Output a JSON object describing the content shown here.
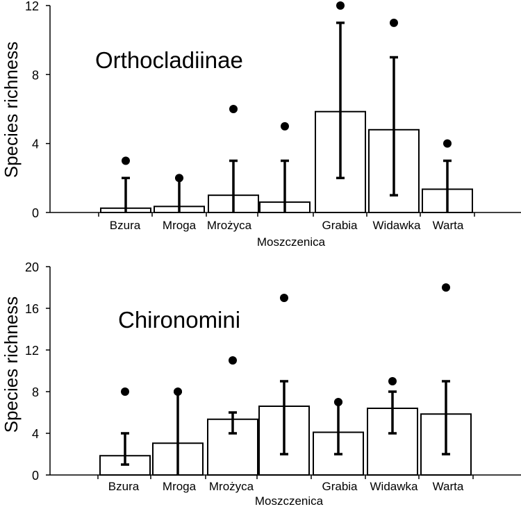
{
  "chart_data": [
    {
      "type": "bar",
      "title": "Orthocladiinae",
      "xlabel": "",
      "ylabel": "Species richness",
      "ylim": [
        0,
        12
      ],
      "yticks": [
        "0",
        "4",
        "8",
        "12"
      ],
      "yticks_values": [
        0,
        4,
        8,
        12
      ],
      "categories": [
        "Bzura",
        "Mroga",
        "Mrożyca",
        "Moszczenica",
        "Grabia",
        "Widawka",
        "Warta"
      ],
      "series": [
        {
          "name": "mean",
          "values": [
            0.25,
            0.35,
            1.0,
            0.6,
            5.85,
            4.8,
            1.35
          ]
        },
        {
          "name": "error_low",
          "values": [
            0,
            0,
            0,
            0,
            2,
            1,
            0
          ]
        },
        {
          "name": "error_high",
          "values": [
            2,
            2,
            3,
            3,
            11,
            9,
            3
          ]
        },
        {
          "name": "max",
          "values": [
            3,
            2,
            6,
            5,
            12,
            11,
            4
          ]
        }
      ]
    },
    {
      "type": "bar",
      "title": "Chironomini",
      "xlabel": "",
      "ylabel": "Species richness",
      "ylim": [
        0,
        20
      ],
      "yticks": [
        "0",
        "4",
        "8",
        "12",
        "16",
        "20"
      ],
      "yticks_values": [
        0,
        4,
        8,
        12,
        16,
        20
      ],
      "categories": [
        "Bzura",
        "Mroga",
        "Mrożyca",
        "Moszczenica",
        "Grabia",
        "Widawka",
        "Warta"
      ],
      "series": [
        {
          "name": "mean",
          "values": [
            1.85,
            3.05,
            5.35,
            6.6,
            4.1,
            6.4,
            5.85
          ]
        },
        {
          "name": "error_low",
          "values": [
            1,
            0,
            4,
            2,
            2,
            4,
            2
          ]
        },
        {
          "name": "error_high",
          "values": [
            4,
            8,
            6,
            9,
            7,
            8,
            9
          ]
        },
        {
          "name": "max",
          "values": [
            8,
            8,
            11,
            17,
            7,
            9,
            18
          ]
        }
      ]
    }
  ]
}
